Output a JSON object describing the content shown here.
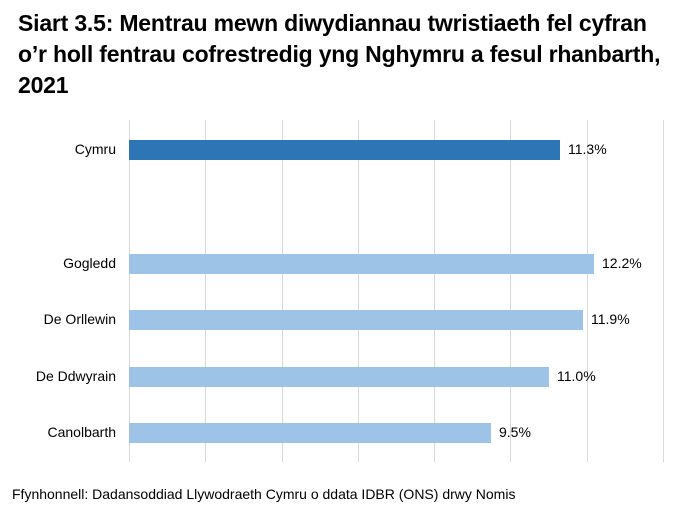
{
  "title": "Siart 3.5: Mentrau mewn diwydiannau twristiaeth fel cyfran o’r holl fentrau cofrestredig yng Nghymru a fesul rhanbarth, 2021",
  "source": "Ffynhonnell: Dadansoddiad Llywodraeth Cymru o ddata IDBR (ONS) drwy Nomis",
  "colors": {
    "highlight": "#2e75b6",
    "regions": "#9dc3e6",
    "grid": "#d9d9d9"
  },
  "rows": [
    {
      "label": "Cymru",
      "value": 11.3,
      "display": "11.3%"
    },
    {
      "label": "Gogledd",
      "value": 12.2,
      "display": "12.2%"
    },
    {
      "label": "De Orllewin",
      "value": 11.9,
      "display": "11.9%"
    },
    {
      "label": "De Ddwyrain",
      "value": 11.0,
      "display": "11.0%"
    },
    {
      "label": "Canolbarth",
      "value": 9.5,
      "display": "9.5%"
    }
  ],
  "chart_data": {
    "type": "bar",
    "orientation": "horizontal",
    "title": "Siart 3.5: Mentrau mewn diwydiannau twristiaeth fel cyfran o’r holl fentrau cofrestredig yng Nghymru a fesul rhanbarth, 2021",
    "categories": [
      "Cymru",
      "Gogledd",
      "De Orllewin",
      "De Ddwyrain",
      "Canolbarth"
    ],
    "values": [
      11.3,
      12.2,
      11.9,
      11.0,
      9.5
    ],
    "value_labels": [
      "11.3%",
      "12.2%",
      "11.9%",
      "11.0%",
      "9.5%"
    ],
    "xlabel": "",
    "ylabel": "",
    "xlim": [
      0,
      14
    ],
    "grid": true,
    "gridline_step": 2,
    "axis_tick_labels_shown": false,
    "legend": null,
    "annotation": "Ffynhonnell: Dadansoddiad Llywodraeth Cymru o ddata IDBR (ONS) drwy Nomis"
  }
}
